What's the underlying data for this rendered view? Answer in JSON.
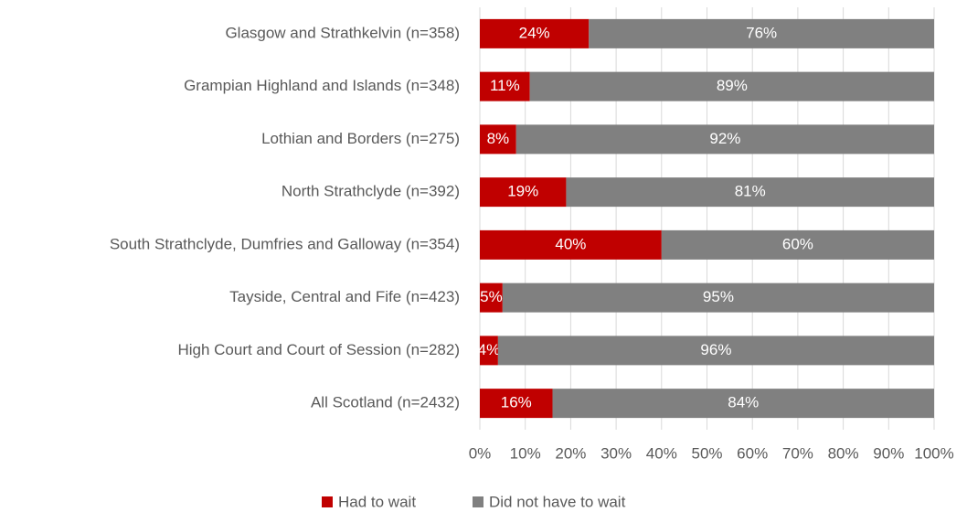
{
  "chart_data": {
    "type": "stacked_barh",
    "categories": [
      "Glasgow and Strathkelvin (n=358)",
      "Grampian Highland and Islands (n=348)",
      "Lothian and Borders (n=275)",
      "North Strathclyde (n=392)",
      "South Strathclyde, Dumfries and Galloway (n=354)",
      "Tayside, Central and Fife (n=423)",
      "High Court and Court of Session (n=282)",
      "All Scotland (n=2432)"
    ],
    "series": [
      {
        "name": "Had to wait",
        "color": "#c00000",
        "values": [
          24,
          11,
          8,
          19,
          40,
          5,
          4,
          16
        ],
        "value_labels": [
          "24%",
          "11%",
          "8%",
          "19%",
          "40%",
          "5%",
          "4%",
          "16%"
        ]
      },
      {
        "name": "Did not have to wait",
        "color": "#808080",
        "values": [
          76,
          89,
          92,
          81,
          60,
          95,
          96,
          84
        ],
        "value_labels": [
          "76%",
          "89%",
          "92%",
          "81%",
          "60%",
          "95%",
          "96%",
          "84%"
        ]
      }
    ],
    "xlim": [
      0,
      100
    ],
    "xticks": [
      {
        "value": 0,
        "label": "0%"
      },
      {
        "value": 10,
        "label": "10%"
      },
      {
        "value": 20,
        "label": "20%"
      },
      {
        "value": 30,
        "label": "30%"
      },
      {
        "value": 40,
        "label": "40%"
      },
      {
        "value": 50,
        "label": "50%"
      },
      {
        "value": 60,
        "label": "60%"
      },
      {
        "value": 70,
        "label": "70%"
      },
      {
        "value": 80,
        "label": "80%"
      },
      {
        "value": 90,
        "label": "90%"
      },
      {
        "value": 100,
        "label": "100%"
      }
    ],
    "grid": true,
    "legend": "bottom"
  }
}
